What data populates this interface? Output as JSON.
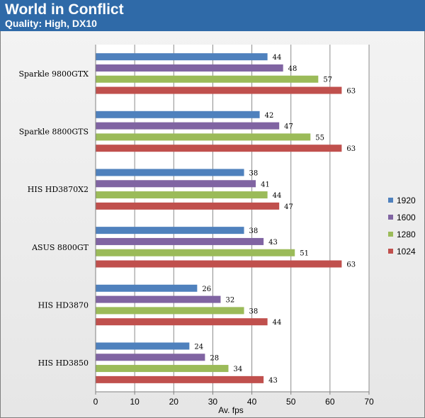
{
  "chart_data": {
    "type": "bar",
    "orientation": "horizontal",
    "title": "World in Conflict",
    "subtitle": "Quality: High, DX10",
    "xlabel": "Av. fps",
    "ylabel": "",
    "xlim": [
      0,
      70
    ],
    "x_ticks": [
      0,
      10,
      20,
      30,
      40,
      50,
      60,
      70
    ],
    "grid": true,
    "legend_position": "right",
    "categories": [
      "Sparkle 9800GTX",
      "Sparkle 8800GTS",
      "HIS HD3870X2",
      "ASUS 8800GT",
      "HIS HD3870",
      "HIS HD3850"
    ],
    "series": [
      {
        "name": "1920",
        "color": "#4f81bd",
        "values": [
          44,
          42,
          38,
          38,
          26,
          24
        ]
      },
      {
        "name": "1600",
        "color": "#8064a2",
        "values": [
          48,
          47,
          41,
          43,
          32,
          28
        ]
      },
      {
        "name": "1280",
        "color": "#9bbb59",
        "values": [
          57,
          55,
          44,
          51,
          38,
          34
        ]
      },
      {
        "name": "1024",
        "color": "#c0504d",
        "values": [
          63,
          63,
          47,
          63,
          44,
          43
        ]
      }
    ]
  }
}
